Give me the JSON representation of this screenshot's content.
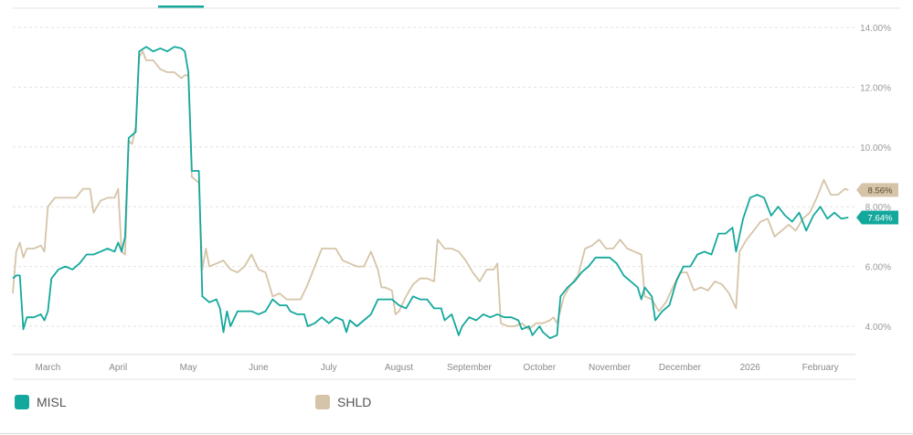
{
  "colors": {
    "MISL": "#14a89c",
    "SHLD": "#d6c4a8",
    "grid": "#e2e2e2",
    "axis_text": "#9a9a9a"
  },
  "chart_data": {
    "type": "line",
    "ylim": [
      3.0,
      14.0
    ],
    "y_ticks": [
      {
        "value": 4,
        "label": "4.00%"
      },
      {
        "value": 6,
        "label": "6.00%"
      },
      {
        "value": 8,
        "label": "8.00%"
      },
      {
        "value": 10,
        "label": "10.00%"
      },
      {
        "value": 12,
        "label": "12.00%"
      },
      {
        "value": 14,
        "label": "14.00%"
      }
    ],
    "x_ticks": [
      {
        "x": 1.1,
        "label": "March"
      },
      {
        "x": 2.1,
        "label": "April"
      },
      {
        "x": 3.1,
        "label": "May"
      },
      {
        "x": 4.1,
        "label": "June"
      },
      {
        "x": 5.1,
        "label": "July"
      },
      {
        "x": 6.1,
        "label": "August"
      },
      {
        "x": 7.1,
        "label": "September"
      },
      {
        "x": 8.1,
        "label": "October"
      },
      {
        "x": 9.1,
        "label": "November"
      },
      {
        "x": 10.1,
        "label": "December"
      },
      {
        "x": 11.1,
        "label": "2026"
      },
      {
        "x": 12.1,
        "label": "February"
      }
    ],
    "xlim": [
      0.6,
      12.6
    ],
    "grid": true,
    "series": [
      {
        "name": "MISL",
        "color": "#14a89c",
        "last_label": "7.64%",
        "points": [
          [
            0.6,
            5.6
          ],
          [
            0.65,
            5.7
          ],
          [
            0.7,
            5.7
          ],
          [
            0.75,
            3.9
          ],
          [
            0.8,
            4.3
          ],
          [
            0.9,
            4.3
          ],
          [
            1.0,
            4.4
          ],
          [
            1.05,
            4.2
          ],
          [
            1.1,
            4.5
          ],
          [
            1.15,
            5.6
          ],
          [
            1.25,
            5.9
          ],
          [
            1.35,
            6.0
          ],
          [
            1.45,
            5.9
          ],
          [
            1.55,
            6.1
          ],
          [
            1.65,
            6.4
          ],
          [
            1.75,
            6.4
          ],
          [
            1.85,
            6.5
          ],
          [
            1.95,
            6.6
          ],
          [
            2.05,
            6.5
          ],
          [
            2.1,
            6.8
          ],
          [
            2.15,
            6.5
          ],
          [
            2.2,
            7.0
          ],
          [
            2.25,
            10.3
          ],
          [
            2.3,
            10.4
          ],
          [
            2.35,
            10.5
          ],
          [
            2.4,
            13.2
          ],
          [
            2.5,
            13.35
          ],
          [
            2.6,
            13.2
          ],
          [
            2.7,
            13.3
          ],
          [
            2.8,
            13.2
          ],
          [
            2.9,
            13.35
          ],
          [
            3.0,
            13.3
          ],
          [
            3.05,
            13.2
          ],
          [
            3.1,
            12.5
          ],
          [
            3.15,
            9.2
          ],
          [
            3.25,
            9.2
          ],
          [
            3.3,
            5.0
          ],
          [
            3.4,
            4.8
          ],
          [
            3.5,
            4.9
          ],
          [
            3.55,
            4.6
          ],
          [
            3.6,
            3.8
          ],
          [
            3.65,
            4.5
          ],
          [
            3.7,
            4.0
          ],
          [
            3.8,
            4.5
          ],
          [
            3.9,
            4.5
          ],
          [
            4.0,
            4.5
          ],
          [
            4.1,
            4.4
          ],
          [
            4.2,
            4.5
          ],
          [
            4.3,
            4.9
          ],
          [
            4.4,
            4.7
          ],
          [
            4.5,
            4.7
          ],
          [
            4.55,
            4.5
          ],
          [
            4.65,
            4.4
          ],
          [
            4.75,
            4.4
          ],
          [
            4.8,
            4.0
          ],
          [
            4.9,
            4.1
          ],
          [
            5.0,
            4.3
          ],
          [
            5.1,
            4.1
          ],
          [
            5.2,
            4.3
          ],
          [
            5.3,
            4.2
          ],
          [
            5.35,
            3.8
          ],
          [
            5.4,
            4.2
          ],
          [
            5.5,
            4.0
          ],
          [
            5.6,
            4.2
          ],
          [
            5.7,
            4.4
          ],
          [
            5.8,
            4.9
          ],
          [
            5.9,
            4.9
          ],
          [
            6.0,
            4.9
          ],
          [
            6.1,
            4.7
          ],
          [
            6.2,
            4.6
          ],
          [
            6.3,
            5.0
          ],
          [
            6.4,
            4.9
          ],
          [
            6.5,
            4.9
          ],
          [
            6.6,
            4.6
          ],
          [
            6.7,
            4.6
          ],
          [
            6.75,
            4.2
          ],
          [
            6.85,
            4.4
          ],
          [
            6.95,
            3.7
          ],
          [
            7.0,
            4.0
          ],
          [
            7.1,
            4.3
          ],
          [
            7.2,
            4.2
          ],
          [
            7.3,
            4.4
          ],
          [
            7.4,
            4.3
          ],
          [
            7.5,
            4.4
          ],
          [
            7.6,
            4.3
          ],
          [
            7.7,
            4.3
          ],
          [
            7.8,
            4.2
          ],
          [
            7.85,
            3.9
          ],
          [
            7.95,
            4.0
          ],
          [
            8.0,
            3.7
          ],
          [
            8.1,
            4.0
          ],
          [
            8.15,
            3.8
          ],
          [
            8.25,
            3.6
          ],
          [
            8.35,
            3.7
          ],
          [
            8.4,
            5.0
          ],
          [
            8.5,
            5.3
          ],
          [
            8.6,
            5.5
          ],
          [
            8.7,
            5.8
          ],
          [
            8.8,
            6.0
          ],
          [
            8.9,
            6.3
          ],
          [
            9.0,
            6.3
          ],
          [
            9.1,
            6.3
          ],
          [
            9.2,
            6.1
          ],
          [
            9.3,
            5.7
          ],
          [
            9.4,
            5.5
          ],
          [
            9.5,
            5.3
          ],
          [
            9.55,
            4.9
          ],
          [
            9.6,
            5.3
          ],
          [
            9.7,
            5.0
          ],
          [
            9.75,
            4.2
          ],
          [
            9.85,
            4.5
          ],
          [
            9.95,
            4.7
          ],
          [
            10.05,
            5.5
          ],
          [
            10.15,
            6.0
          ],
          [
            10.25,
            6.0
          ],
          [
            10.35,
            6.4
          ],
          [
            10.45,
            6.5
          ],
          [
            10.55,
            6.4
          ],
          [
            10.65,
            7.1
          ],
          [
            10.75,
            7.1
          ],
          [
            10.85,
            7.3
          ],
          [
            10.9,
            6.5
          ],
          [
            11.0,
            7.6
          ],
          [
            11.1,
            8.3
          ],
          [
            11.2,
            8.4
          ],
          [
            11.3,
            8.3
          ],
          [
            11.4,
            7.7
          ],
          [
            11.5,
            8.0
          ],
          [
            11.6,
            7.7
          ],
          [
            11.7,
            7.5
          ],
          [
            11.8,
            7.8
          ],
          [
            11.9,
            7.2
          ],
          [
            12.0,
            7.7
          ],
          [
            12.1,
            8.0
          ],
          [
            12.2,
            7.6
          ],
          [
            12.3,
            7.8
          ],
          [
            12.4,
            7.6
          ],
          [
            12.5,
            7.64
          ]
        ]
      },
      {
        "name": "SHLD",
        "color": "#d6c4a8",
        "last_label": "8.56%",
        "points": [
          [
            0.6,
            5.1
          ],
          [
            0.65,
            6.5
          ],
          [
            0.7,
            6.8
          ],
          [
            0.75,
            6.3
          ],
          [
            0.8,
            6.6
          ],
          [
            0.9,
            6.6
          ],
          [
            1.0,
            6.7
          ],
          [
            1.05,
            6.5
          ],
          [
            1.1,
            8.0
          ],
          [
            1.2,
            8.3
          ],
          [
            1.3,
            8.3
          ],
          [
            1.4,
            8.3
          ],
          [
            1.5,
            8.3
          ],
          [
            1.6,
            8.6
          ],
          [
            1.7,
            8.6
          ],
          [
            1.75,
            7.8
          ],
          [
            1.85,
            8.2
          ],
          [
            1.95,
            8.3
          ],
          [
            2.05,
            8.3
          ],
          [
            2.1,
            8.6
          ],
          [
            2.15,
            6.5
          ],
          [
            2.2,
            6.4
          ],
          [
            2.25,
            10.2
          ],
          [
            2.3,
            10.1
          ],
          [
            2.35,
            10.7
          ],
          [
            2.4,
            13.0
          ],
          [
            2.45,
            13.2
          ],
          [
            2.5,
            12.9
          ],
          [
            2.6,
            12.9
          ],
          [
            2.7,
            12.6
          ],
          [
            2.8,
            12.5
          ],
          [
            2.9,
            12.5
          ],
          [
            3.0,
            12.3
          ],
          [
            3.05,
            12.4
          ],
          [
            3.1,
            12.4
          ],
          [
            3.15,
            9.0
          ],
          [
            3.25,
            8.8
          ],
          [
            3.3,
            5.9
          ],
          [
            3.35,
            6.6
          ],
          [
            3.4,
            6.0
          ],
          [
            3.5,
            6.1
          ],
          [
            3.6,
            6.2
          ],
          [
            3.7,
            5.9
          ],
          [
            3.8,
            5.8
          ],
          [
            3.9,
            6.0
          ],
          [
            4.0,
            6.4
          ],
          [
            4.1,
            5.9
          ],
          [
            4.2,
            5.8
          ],
          [
            4.3,
            5.0
          ],
          [
            4.4,
            5.1
          ],
          [
            4.5,
            4.9
          ],
          [
            4.6,
            4.9
          ],
          [
            4.7,
            4.9
          ],
          [
            4.8,
            5.4
          ],
          [
            4.9,
            6.0
          ],
          [
            5.0,
            6.6
          ],
          [
            5.1,
            6.6
          ],
          [
            5.2,
            6.6
          ],
          [
            5.3,
            6.2
          ],
          [
            5.4,
            6.1
          ],
          [
            5.5,
            6.0
          ],
          [
            5.6,
            6.0
          ],
          [
            5.7,
            6.5
          ],
          [
            5.8,
            5.9
          ],
          [
            5.85,
            5.3
          ],
          [
            5.9,
            5.3
          ],
          [
            6.0,
            5.2
          ],
          [
            6.05,
            4.4
          ],
          [
            6.1,
            4.5
          ],
          [
            6.2,
            5.0
          ],
          [
            6.3,
            5.4
          ],
          [
            6.4,
            5.6
          ],
          [
            6.5,
            5.6
          ],
          [
            6.6,
            5.5
          ],
          [
            6.65,
            6.9
          ],
          [
            6.75,
            6.6
          ],
          [
            6.85,
            6.6
          ],
          [
            6.95,
            6.5
          ],
          [
            7.05,
            6.2
          ],
          [
            7.15,
            5.8
          ],
          [
            7.25,
            5.5
          ],
          [
            7.35,
            5.9
          ],
          [
            7.45,
            5.9
          ],
          [
            7.5,
            6.1
          ],
          [
            7.55,
            4.1
          ],
          [
            7.65,
            4.0
          ],
          [
            7.75,
            4.0
          ],
          [
            7.85,
            4.1
          ],
          [
            7.95,
            3.9
          ],
          [
            8.05,
            4.1
          ],
          [
            8.15,
            4.1
          ],
          [
            8.25,
            4.2
          ],
          [
            8.3,
            4.3
          ],
          [
            8.35,
            4.1
          ],
          [
            8.45,
            5.0
          ],
          [
            8.55,
            5.4
          ],
          [
            8.65,
            5.7
          ],
          [
            8.75,
            6.6
          ],
          [
            8.85,
            6.7
          ],
          [
            8.95,
            6.9
          ],
          [
            9.05,
            6.6
          ],
          [
            9.15,
            6.6
          ],
          [
            9.25,
            6.9
          ],
          [
            9.35,
            6.6
          ],
          [
            9.45,
            6.5
          ],
          [
            9.55,
            6.4
          ],
          [
            9.6,
            5.0
          ],
          [
            9.7,
            4.9
          ],
          [
            9.8,
            4.5
          ],
          [
            9.9,
            4.8
          ],
          [
            10.0,
            5.3
          ],
          [
            10.1,
            5.8
          ],
          [
            10.2,
            5.8
          ],
          [
            10.3,
            5.2
          ],
          [
            10.4,
            5.3
          ],
          [
            10.5,
            5.2
          ],
          [
            10.6,
            5.5
          ],
          [
            10.7,
            5.4
          ],
          [
            10.8,
            5.1
          ],
          [
            10.9,
            4.6
          ],
          [
            10.95,
            6.5
          ],
          [
            11.05,
            6.9
          ],
          [
            11.15,
            7.2
          ],
          [
            11.25,
            7.5
          ],
          [
            11.35,
            7.6
          ],
          [
            11.45,
            7.0
          ],
          [
            11.55,
            7.2
          ],
          [
            11.65,
            7.4
          ],
          [
            11.75,
            7.2
          ],
          [
            11.85,
            7.6
          ],
          [
            11.95,
            7.8
          ],
          [
            12.05,
            8.3
          ],
          [
            12.15,
            8.9
          ],
          [
            12.25,
            8.4
          ],
          [
            12.35,
            8.4
          ],
          [
            12.45,
            8.6
          ],
          [
            12.5,
            8.56
          ]
        ]
      }
    ]
  },
  "legend": [
    {
      "label": "MISL"
    },
    {
      "label": "SHLD"
    }
  ]
}
